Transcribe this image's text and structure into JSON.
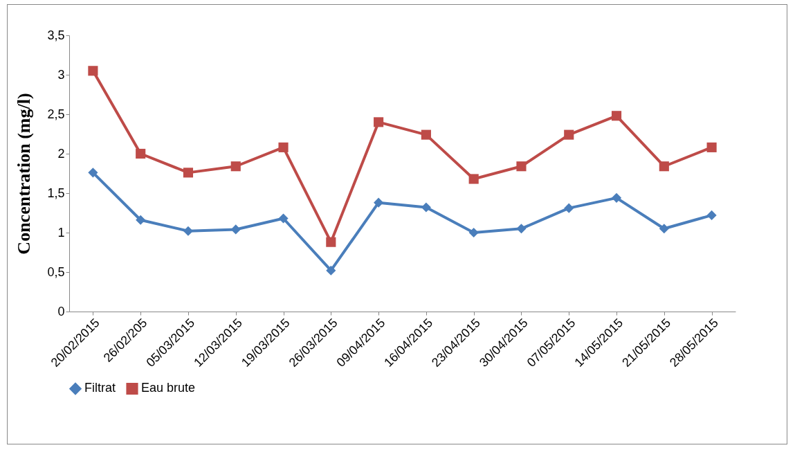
{
  "chart_data": {
    "type": "line",
    "ylabel": "Concentration (mg/l)",
    "categories": [
      "20/02/2015",
      "26/02/205",
      "05/03/2015",
      "12/03/2015",
      "19/03/2015",
      "26/03/2015",
      "09/04/2015",
      "16/04/2015",
      "23/04/2015",
      "30/04/2015",
      "07/05/2015",
      "14/05/2015",
      "21/05/2015",
      "28/05/2015"
    ],
    "series": [
      {
        "name": "Filtrat",
        "color": "#4a7ebb",
        "marker": "diamond",
        "values": [
          1.76,
          1.16,
          1.02,
          1.04,
          1.18,
          0.52,
          1.38,
          1.32,
          1.0,
          1.05,
          1.31,
          1.44,
          1.05,
          1.22
        ]
      },
      {
        "name": "Eau brute",
        "color": "#be4b48",
        "marker": "square",
        "values": [
          3.05,
          2.0,
          1.76,
          1.84,
          2.08,
          0.88,
          2.4,
          2.24,
          1.68,
          1.84,
          2.24,
          2.48,
          1.84,
          2.08
        ]
      }
    ],
    "ylim": [
      0,
      3.5
    ],
    "yticks": [
      0,
      {
        "value": 0.5,
        "label": "0,5"
      },
      1,
      {
        "value": 1.5,
        "label": "1,5"
      },
      2,
      {
        "value": 2.5,
        "label": "2,5"
      },
      3,
      {
        "value": 3.5,
        "label": "3,5"
      }
    ],
    "grid": false,
    "legend": "bottom",
    "line_style": "solid"
  }
}
